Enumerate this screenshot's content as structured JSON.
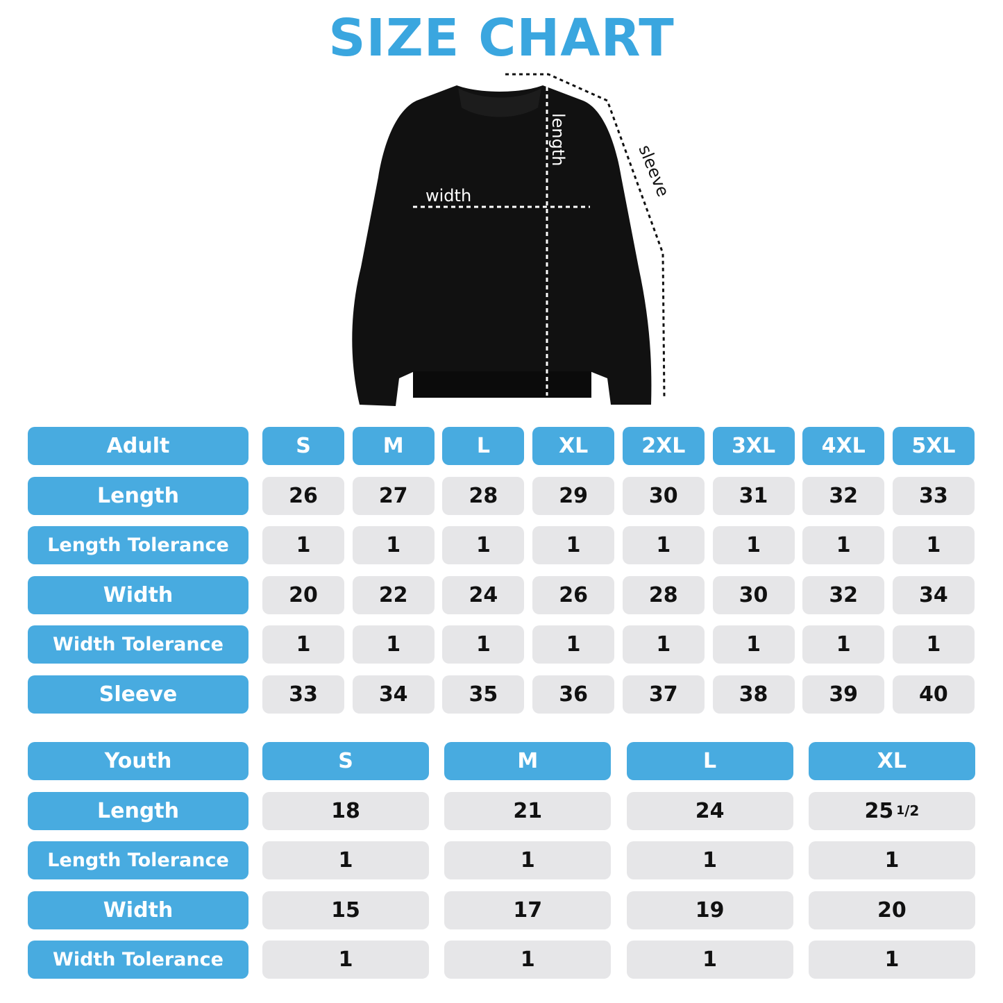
{
  "title": "SIZE CHART",
  "diagram": {
    "width_label": "width",
    "length_label": "length",
    "sleeve_label": "sleeve"
  },
  "colors": {
    "accent": "#48abe0",
    "cell_bg": "#e6e6e8",
    "title": "#3aa6df"
  },
  "adult": {
    "header": "Adult",
    "sizes": [
      "S",
      "M",
      "L",
      "XL",
      "2XL",
      "3XL",
      "4XL",
      "5XL"
    ],
    "rows": [
      {
        "label": "Length",
        "values": [
          "26",
          "27",
          "28",
          "29",
          "30",
          "31",
          "32",
          "33"
        ]
      },
      {
        "label": "Length Tolerance",
        "values": [
          "1",
          "1",
          "1",
          "1",
          "1",
          "1",
          "1",
          "1"
        ]
      },
      {
        "label": "Width",
        "values": [
          "20",
          "22",
          "24",
          "26",
          "28",
          "30",
          "32",
          "34"
        ]
      },
      {
        "label": "Width Tolerance",
        "values": [
          "1",
          "1",
          "1",
          "1",
          "1",
          "1",
          "1",
          "1"
        ]
      },
      {
        "label": "Sleeve",
        "values": [
          "33",
          "34",
          "35",
          "36",
          "37",
          "38",
          "39",
          "40"
        ]
      }
    ]
  },
  "youth": {
    "header": "Youth",
    "sizes": [
      "S",
      "M",
      "L",
      "XL"
    ],
    "rows": [
      {
        "label": "Length",
        "values": [
          "18",
          "21",
          "24",
          "25 1/2"
        ]
      },
      {
        "label": "Length Tolerance",
        "values": [
          "1",
          "1",
          "1",
          "1"
        ]
      },
      {
        "label": "Width",
        "values": [
          "15",
          "17",
          "19",
          "20"
        ]
      },
      {
        "label": "Width Tolerance",
        "values": [
          "1",
          "1",
          "1",
          "1"
        ]
      }
    ]
  }
}
